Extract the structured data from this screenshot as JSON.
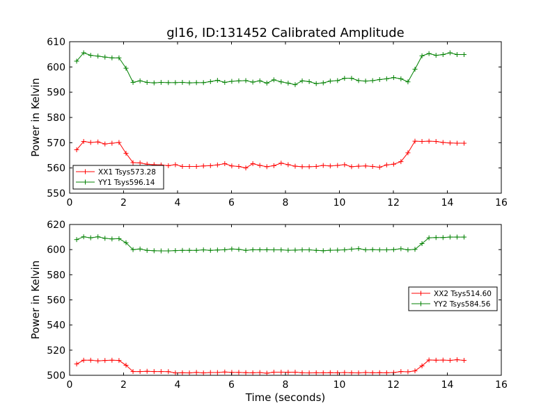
{
  "chart_data": [
    {
      "type": "line",
      "title": "gl16, ID:131452 Calibrated Amplitude",
      "xlabel": "",
      "ylabel": "Power in Kelvin",
      "xlim": [
        0,
        16
      ],
      "ylim": [
        550,
        610
      ],
      "xticks": [
        0,
        2,
        4,
        6,
        8,
        10,
        12,
        14,
        16
      ],
      "yticks": [
        550,
        560,
        570,
        580,
        590,
        600,
        610
      ],
      "legend_position": "lower-left",
      "x": [
        0.26,
        0.52,
        0.78,
        1.05,
        1.31,
        1.57,
        1.83,
        2.09,
        2.35,
        2.61,
        2.87,
        3.13,
        3.39,
        3.66,
        3.92,
        4.18,
        4.44,
        4.7,
        4.96,
        5.22,
        5.48,
        5.75,
        6.01,
        6.27,
        6.53,
        6.79,
        7.05,
        7.31,
        7.57,
        7.84,
        8.1,
        8.36,
        8.62,
        8.88,
        9.14,
        9.4,
        9.66,
        9.93,
        10.19,
        10.45,
        10.71,
        10.97,
        11.23,
        11.49,
        11.75,
        12.01,
        12.28,
        12.54,
        12.8,
        13.06,
        13.32,
        13.58,
        13.84,
        14.1,
        14.36,
        14.62
      ],
      "series": [
        {
          "name": "XX1 Tsys573.28",
          "color": "#ff0000",
          "values": [
            567.2,
            570.5,
            570.1,
            570.3,
            569.5,
            569.8,
            570.1,
            565.8,
            562.1,
            562.0,
            561.5,
            561.3,
            561.2,
            560.9,
            561.3,
            560.6,
            560.6,
            560.6,
            560.8,
            560.9,
            561.2,
            561.7,
            560.8,
            560.6,
            560.0,
            561.7,
            561.0,
            560.5,
            560.9,
            561.9,
            561.3,
            560.7,
            560.5,
            560.5,
            560.6,
            561.0,
            560.8,
            561.0,
            561.3,
            560.5,
            560.7,
            560.8,
            560.6,
            560.3,
            561.2,
            561.5,
            562.5,
            566.0,
            570.6,
            570.5,
            570.6,
            570.5,
            570.1,
            569.9,
            569.8,
            569.8
          ]
        },
        {
          "name": "YY1 Tsys596.14",
          "color": "#008000",
          "values": [
            602.3,
            605.6,
            604.6,
            604.3,
            603.9,
            603.6,
            603.6,
            599.5,
            593.9,
            594.5,
            593.9,
            593.7,
            593.9,
            593.8,
            593.8,
            593.9,
            593.7,
            593.8,
            593.8,
            594.2,
            594.7,
            593.9,
            594.3,
            594.5,
            594.6,
            594.0,
            594.5,
            593.6,
            594.9,
            594.1,
            593.6,
            593.0,
            594.5,
            594.2,
            593.4,
            593.7,
            594.4,
            594.6,
            595.5,
            595.5,
            594.6,
            594.4,
            594.6,
            595.0,
            595.3,
            595.8,
            595.3,
            594.1,
            599.1,
            604.4,
            605.3,
            604.6,
            604.9,
            605.6,
            604.9,
            604.9
          ]
        }
      ]
    },
    {
      "type": "line",
      "title": "",
      "xlabel": "Time (seconds)",
      "ylabel": "Power in Kelvin",
      "xlim": [
        0,
        16
      ],
      "ylim": [
        500,
        620
      ],
      "xticks": [
        0,
        2,
        4,
        6,
        8,
        10,
        12,
        14,
        16
      ],
      "yticks": [
        500,
        520,
        540,
        560,
        580,
        600,
        620
      ],
      "legend_position": "center-right",
      "x": [
        0.26,
        0.52,
        0.78,
        1.05,
        1.31,
        1.57,
        1.83,
        2.09,
        2.35,
        2.61,
        2.87,
        3.13,
        3.39,
        3.66,
        3.92,
        4.18,
        4.44,
        4.7,
        4.96,
        5.22,
        5.48,
        5.75,
        6.01,
        6.27,
        6.53,
        6.79,
        7.05,
        7.31,
        7.57,
        7.84,
        8.1,
        8.36,
        8.62,
        8.88,
        9.14,
        9.4,
        9.66,
        9.93,
        10.19,
        10.45,
        10.71,
        10.97,
        11.23,
        11.49,
        11.75,
        12.01,
        12.28,
        12.54,
        12.8,
        13.06,
        13.32,
        13.58,
        13.84,
        14.1,
        14.36,
        14.62
      ],
      "series": [
        {
          "name": "XX2 Tsys514.60",
          "color": "#ff0000",
          "values": [
            509.0,
            512.0,
            512.0,
            511.5,
            511.8,
            512.0,
            511.8,
            508.0,
            503.0,
            503.0,
            503.2,
            503.0,
            503.0,
            502.9,
            501.9,
            502.0,
            501.9,
            502.3,
            501.9,
            502.2,
            502.2,
            502.6,
            502.3,
            502.3,
            502.1,
            502.0,
            502.2,
            501.7,
            502.5,
            502.5,
            502.4,
            502.5,
            502.0,
            501.9,
            502.0,
            502.0,
            502.1,
            502.0,
            502.2,
            502.0,
            501.9,
            502.2,
            502.0,
            502.1,
            502.0,
            502.2,
            503.0,
            502.8,
            503.5,
            507.5,
            512.2,
            512.0,
            512.1,
            511.9,
            512.4,
            511.9
          ]
        },
        {
          "name": "YY2 Tsys584.56",
          "color": "#008000",
          "values": [
            608.0,
            610.2,
            609.4,
            610.2,
            609.0,
            608.5,
            608.7,
            605.5,
            600.0,
            600.5,
            599.4,
            599.1,
            599.0,
            599.0,
            599.2,
            599.4,
            599.4,
            599.4,
            599.8,
            599.4,
            599.7,
            599.9,
            600.5,
            600.2,
            599.4,
            599.9,
            599.9,
            599.9,
            599.8,
            599.8,
            599.5,
            599.6,
            599.8,
            599.8,
            599.4,
            599.1,
            599.5,
            599.6,
            599.8,
            600.4,
            600.8,
            599.8,
            600.0,
            599.8,
            599.8,
            600.0,
            600.7,
            599.8,
            600.2,
            604.8,
            609.4,
            609.6,
            609.6,
            610.0,
            610.0,
            610.0
          ]
        }
      ]
    }
  ]
}
